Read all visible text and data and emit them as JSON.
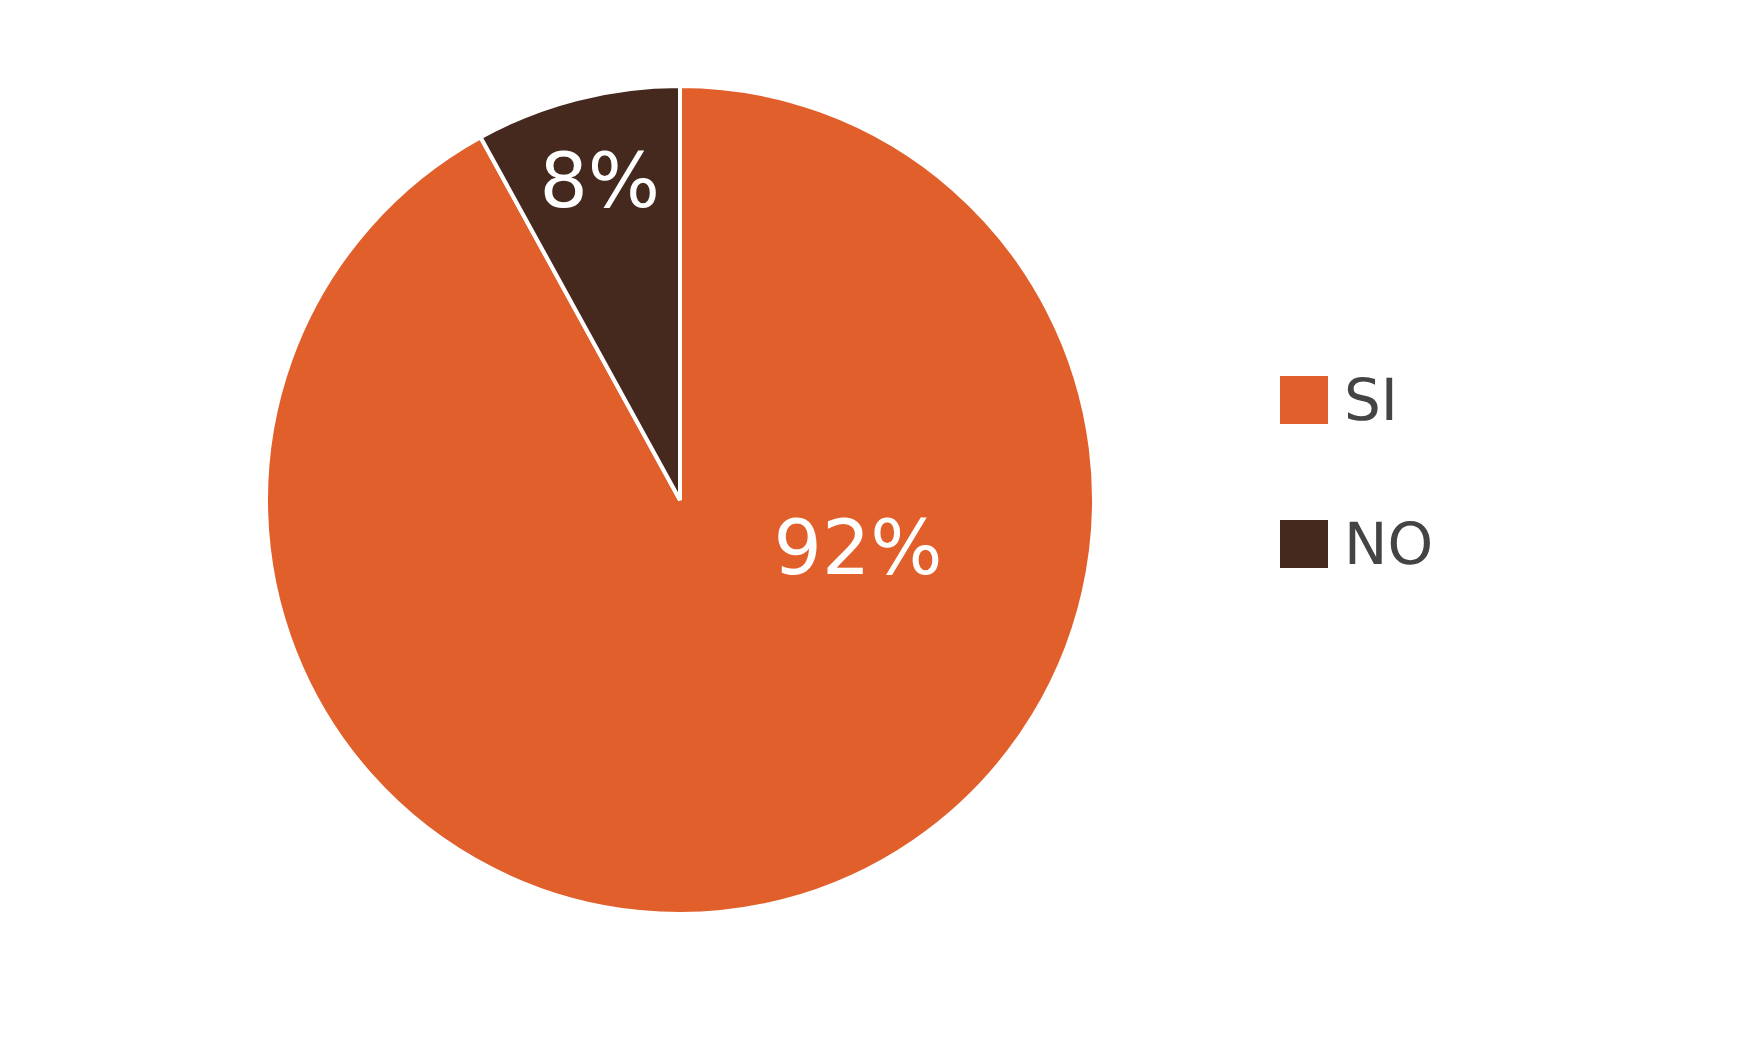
{
  "chart_data": {
    "type": "pie",
    "categories": [
      "SI",
      "NO"
    ],
    "values": [
      92,
      8
    ],
    "value_labels": [
      "92%",
      "8%"
    ],
    "colors": [
      "#e05f2a",
      "#45291f"
    ],
    "legend": "right"
  }
}
